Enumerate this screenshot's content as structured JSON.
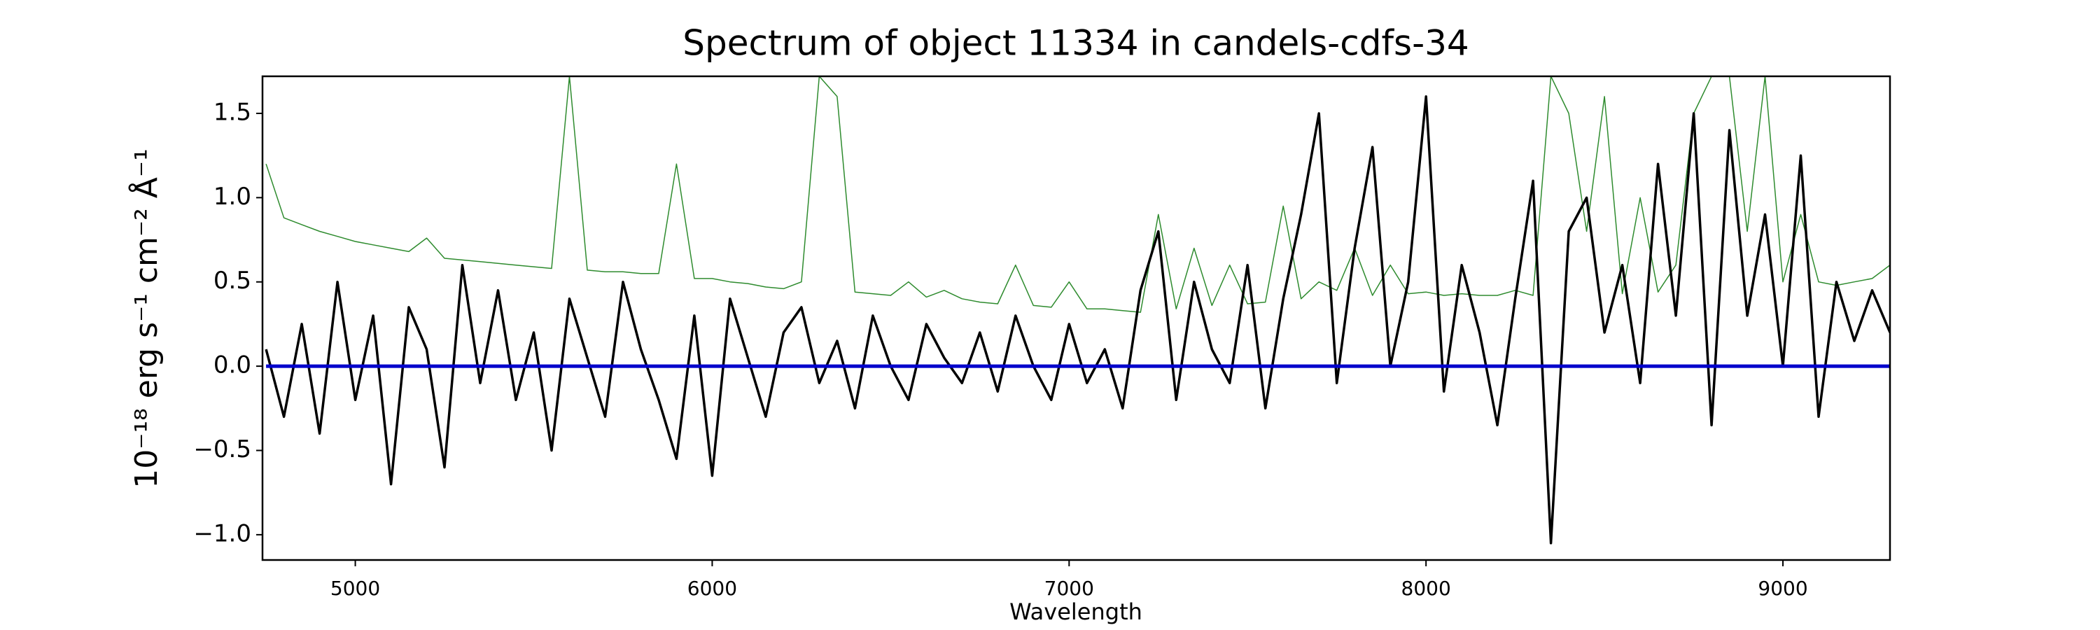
{
  "chart_data": {
    "type": "line",
    "title": "Spectrum of object 11334 in candels-cdfs-34",
    "x_label": "Wavelength",
    "y_label": "10⁻¹⁸ erg s⁻¹ cm⁻² Å⁻¹",
    "xlim": [
      4740,
      9300
    ],
    "ylim": [
      -1.15,
      1.72
    ],
    "xticks": [
      5000,
      6000,
      7000,
      8000,
      9000
    ],
    "yticks": [
      {
        "value": -1.0,
        "label": "−1.0"
      },
      {
        "value": -0.5,
        "label": "−0.5"
      },
      {
        "value": 0.0,
        "label": "0.0"
      },
      {
        "value": 0.5,
        "label": "0.5"
      },
      {
        "value": 1.0,
        "label": "1.0"
      },
      {
        "value": 1.5,
        "label": "1.5"
      }
    ],
    "x": [
      4750,
      4800,
      4850,
      4900,
      4950,
      5000,
      5050,
      5100,
      5150,
      5200,
      5250,
      5300,
      5350,
      5400,
      5450,
      5500,
      5550,
      5600,
      5650,
      5700,
      5750,
      5800,
      5850,
      5900,
      5950,
      6000,
      6050,
      6100,
      6150,
      6200,
      6250,
      6300,
      6350,
      6400,
      6450,
      6500,
      6550,
      6600,
      6650,
      6700,
      6750,
      6800,
      6850,
      6900,
      6950,
      7000,
      7050,
      7100,
      7150,
      7200,
      7250,
      7300,
      7350,
      7400,
      7450,
      7500,
      7550,
      7600,
      7650,
      7700,
      7750,
      7800,
      7850,
      7900,
      7950,
      8000,
      8050,
      8100,
      8150,
      8200,
      8250,
      8300,
      8350,
      8400,
      8450,
      8500,
      8550,
      8600,
      8650,
      8700,
      8750,
      8800,
      8850,
      8900,
      8950,
      9000,
      9050,
      9100,
      9150,
      9200,
      9250,
      9300
    ],
    "series": [
      {
        "color": "#2e8b2e",
        "width": 1.5,
        "values": [
          1.2,
          0.88,
          0.84,
          0.8,
          0.77,
          0.74,
          0.72,
          0.7,
          0.68,
          0.76,
          0.64,
          0.63,
          0.62,
          0.61,
          0.6,
          0.59,
          0.58,
          1.72,
          0.57,
          0.56,
          0.56,
          0.55,
          0.55,
          1.2,
          0.52,
          0.52,
          0.5,
          0.49,
          0.47,
          0.46,
          0.5,
          1.72,
          1.6,
          0.44,
          0.43,
          0.42,
          0.5,
          0.41,
          0.45,
          0.4,
          0.38,
          0.37,
          0.6,
          0.36,
          0.35,
          0.5,
          0.34,
          0.34,
          0.33,
          0.32,
          0.9,
          0.34,
          0.7,
          0.36,
          0.6,
          0.37,
          0.38,
          0.95,
          0.4,
          0.5,
          0.45,
          0.7,
          0.42,
          0.6,
          0.43,
          0.44,
          0.42,
          0.43,
          0.42,
          0.42,
          0.45,
          0.42,
          1.72,
          1.5,
          0.8,
          1.6,
          0.43,
          1.0,
          0.44,
          0.6,
          1.5,
          1.72,
          1.72,
          0.8,
          1.72,
          0.5,
          0.9,
          0.5,
          0.48,
          0.5,
          0.52,
          0.6
        ]
      },
      {
        "color": "#000000",
        "width": 3.5,
        "values": [
          0.1,
          -0.3,
          0.25,
          -0.4,
          0.5,
          -0.2,
          0.3,
          -0.7,
          0.35,
          0.1,
          -0.6,
          0.6,
          -0.1,
          0.45,
          -0.2,
          0.2,
          -0.5,
          0.4,
          0.05,
          -0.3,
          0.5,
          0.1,
          -0.2,
          -0.55,
          0.3,
          -0.65,
          0.4,
          0.05,
          -0.3,
          0.2,
          0.35,
          -0.1,
          0.15,
          -0.25,
          0.3,
          0.0,
          -0.2,
          0.25,
          0.05,
          -0.1,
          0.2,
          -0.15,
          0.3,
          0.0,
          -0.2,
          0.25,
          -0.1,
          0.1,
          -0.25,
          0.45,
          0.8,
          -0.2,
          0.5,
          0.1,
          -0.1,
          0.6,
          -0.25,
          0.4,
          0.9,
          1.5,
          -0.1,
          0.7,
          1.3,
          0.0,
          0.5,
          1.6,
          -0.15,
          0.6,
          0.2,
          -0.35,
          0.4,
          1.1,
          -1.05,
          0.8,
          1.0,
          0.2,
          0.6,
          -0.1,
          1.2,
          0.3,
          1.5,
          -0.35,
          1.4,
          0.3,
          0.9,
          0.0,
          1.25,
          -0.3,
          0.5,
          0.15,
          0.45,
          0.2
        ]
      },
      {
        "color": "#0000cc",
        "width": 5,
        "values": [
          0,
          0,
          0,
          0,
          0,
          0,
          0,
          0,
          0,
          0,
          0,
          0,
          0,
          0,
          0,
          0,
          0,
          0,
          0,
          0,
          0,
          0,
          0,
          0,
          0,
          0,
          0,
          0,
          0,
          0,
          0,
          0,
          0,
          0,
          0,
          0,
          0,
          0,
          0,
          0,
          0,
          0,
          0,
          0,
          0,
          0,
          0,
          0,
          0,
          0,
          0,
          0,
          0,
          0,
          0,
          0,
          0,
          0,
          0,
          0,
          0,
          0,
          0,
          0,
          0,
          0,
          0,
          0,
          0,
          0,
          0,
          0,
          0,
          0,
          0,
          0,
          0,
          0,
          0,
          0,
          0,
          0,
          0,
          0,
          0,
          0,
          0,
          0,
          0,
          0,
          0,
          0
        ]
      }
    ]
  }
}
